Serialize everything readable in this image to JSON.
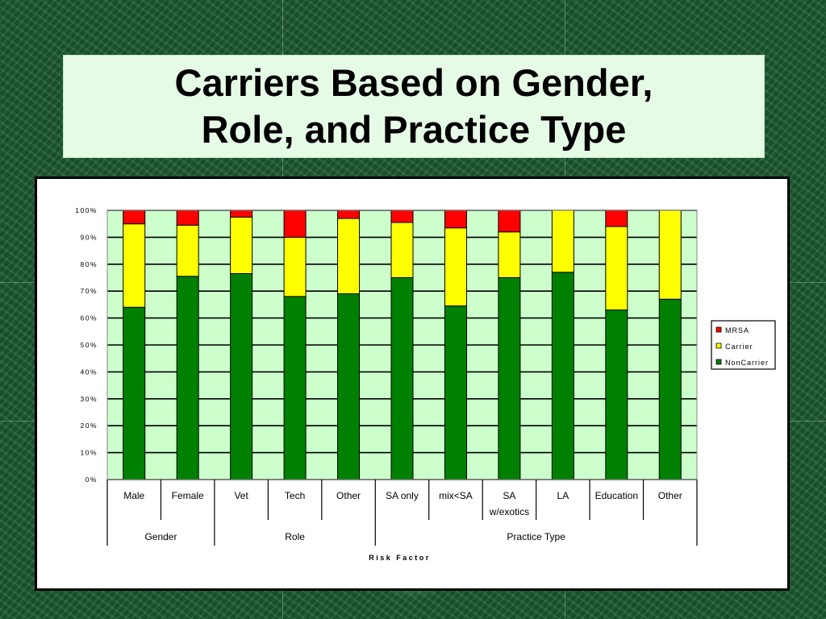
{
  "slide": {
    "title_line1": "Carriers Based on Gender,",
    "title_line2": "Role, and Practice Type"
  },
  "colors": {
    "MRSA": "#ff0000",
    "Carrier": "#ffff00",
    "NonCarrier": "#008000",
    "plot_background": "#ccffcc"
  },
  "chart_data": {
    "type": "bar",
    "stacked": true,
    "percent": true,
    "title": "",
    "xlabel": "Risk Factor",
    "ylabel": "",
    "ylim": [
      0,
      100
    ],
    "yticks": [
      "0%",
      "10%",
      "20%",
      "30%",
      "40%",
      "50%",
      "60%",
      "70%",
      "80%",
      "90%",
      "100%"
    ],
    "grid": true,
    "legend_position": "right",
    "categories": [
      "Male",
      "Female",
      "Vet",
      "Tech",
      "Other",
      "SA only",
      "mix<SA",
      "SA w/exotics",
      "LA",
      "Education",
      "Other"
    ],
    "category_lines": [
      [
        "Male"
      ],
      [
        "Female"
      ],
      [
        "Vet"
      ],
      [
        "Tech"
      ],
      [
        "Other"
      ],
      [
        "SA only"
      ],
      [
        "mix<SA"
      ],
      [
        "SA",
        "w/exotics"
      ],
      [
        "LA"
      ],
      [
        "Education"
      ],
      [
        "Other"
      ]
    ],
    "groups": [
      {
        "name": "Gender",
        "start": 0,
        "end": 1
      },
      {
        "name": "Role",
        "start": 2,
        "end": 4
      },
      {
        "name": "Practice Type",
        "start": 5,
        "end": 10
      }
    ],
    "series": [
      {
        "name": "NonCarrier",
        "values": [
          64,
          75.5,
          76.5,
          68,
          69,
          75,
          64.5,
          75,
          77,
          63,
          67
        ]
      },
      {
        "name": "Carrier",
        "values": [
          31,
          19,
          21,
          22,
          28,
          20.5,
          29,
          17,
          23,
          31,
          33
        ]
      },
      {
        "name": "MRSA",
        "values": [
          5,
          5.5,
          2.5,
          10,
          3,
          4.5,
          6.5,
          8,
          0,
          6,
          0
        ]
      }
    ],
    "legend_order": [
      "MRSA",
      "Carrier",
      "NonCarrier"
    ]
  }
}
